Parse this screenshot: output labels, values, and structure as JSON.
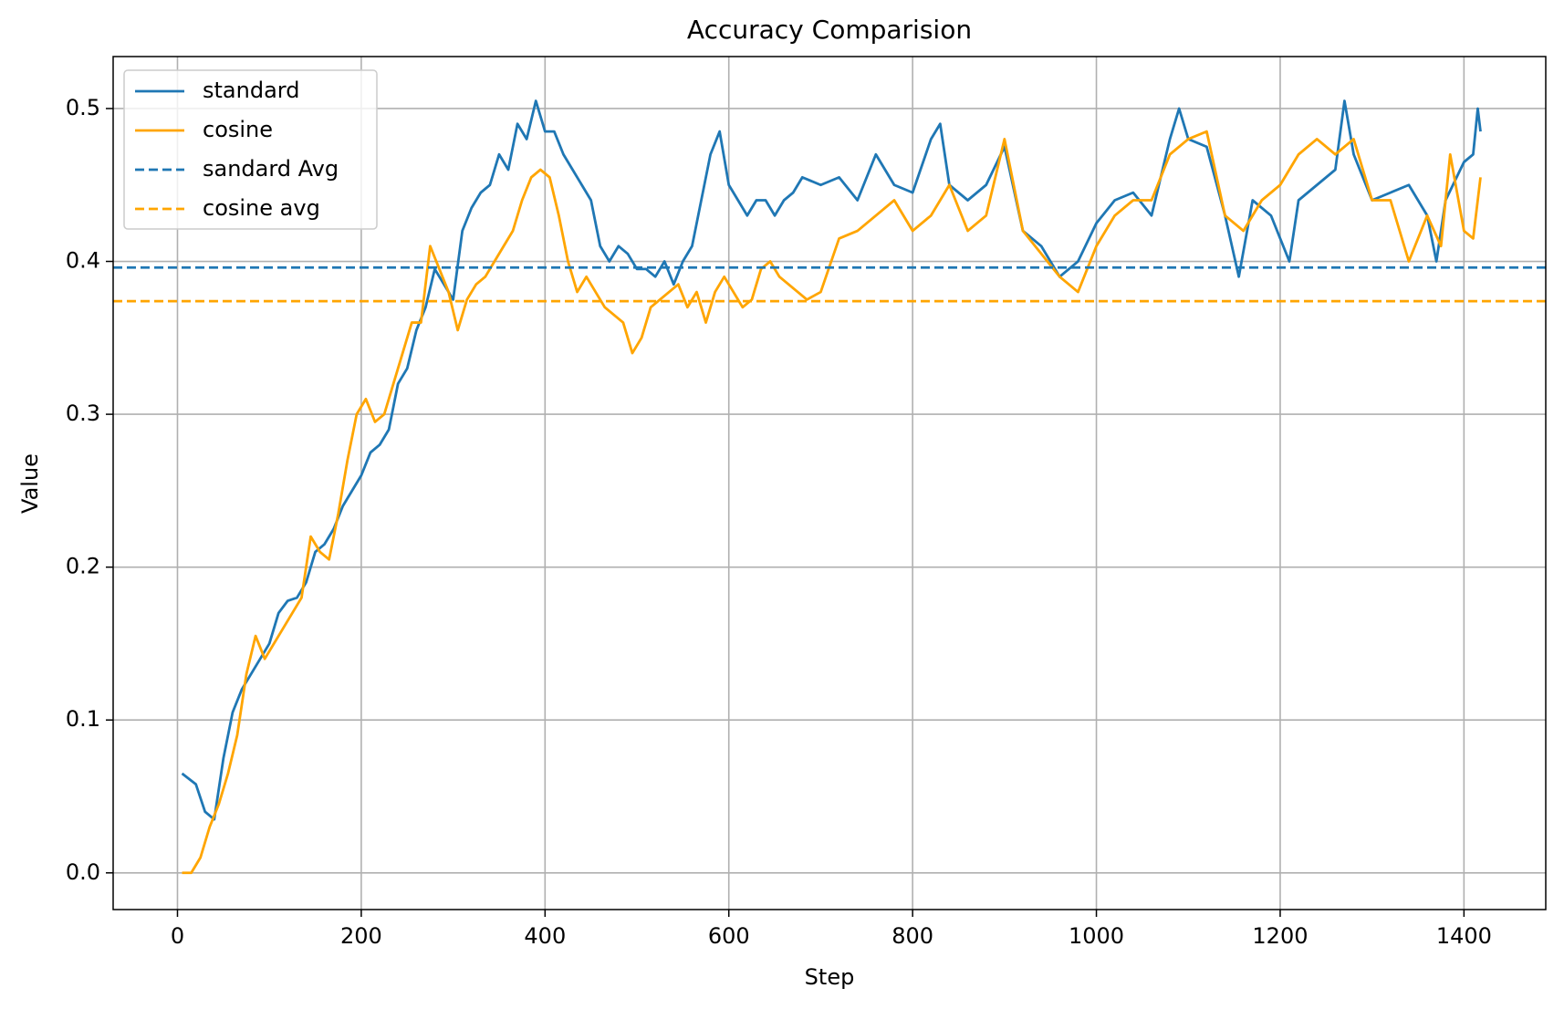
{
  "chart_data": {
    "type": "line",
    "title": "Accuracy Comparision",
    "x_label": "Step",
    "y_label": "Value",
    "xlim": [
      -70,
      1489
    ],
    "ylim": [
      -0.024,
      0.534
    ],
    "xticks": [
      0,
      200,
      400,
      600,
      800,
      1000,
      1200,
      1400
    ],
    "yticks": [
      {
        "value": 0,
        "label": "0.0"
      },
      0.1,
      0.2,
      0.3,
      0.4,
      0.5
    ],
    "grid": true,
    "legend": "upper left",
    "series": [
      {
        "name": "standard",
        "color": "#1f77b4",
        "x": [
          5,
          20,
          30,
          40,
          50,
          60,
          70,
          80,
          90,
          100,
          110,
          120,
          130,
          140,
          150,
          160,
          170,
          180,
          190,
          200,
          210,
          220,
          230,
          240,
          250,
          260,
          270,
          280,
          290,
          300,
          310,
          320,
          330,
          340,
          350,
          360,
          370,
          380,
          390,
          400,
          410,
          420,
          430,
          440,
          450,
          460,
          470,
          480,
          490,
          500,
          510,
          520,
          530,
          540,
          550,
          560,
          570,
          580,
          590,
          600,
          610,
          620,
          630,
          640,
          650,
          660,
          670,
          680,
          700,
          720,
          740,
          760,
          780,
          800,
          820,
          830,
          840,
          860,
          880,
          900,
          920,
          940,
          960,
          980,
          1000,
          1020,
          1040,
          1060,
          1080,
          1090,
          1100,
          1120,
          1140,
          1155,
          1170,
          1190,
          1210,
          1220,
          1240,
          1260,
          1270,
          1280,
          1300,
          1320,
          1340,
          1360,
          1370,
          1380,
          1400,
          1410,
          1415,
          1418
        ],
        "values": [
          0.065,
          0.058,
          0.04,
          0.035,
          0.075,
          0.105,
          0.12,
          0.13,
          0.14,
          0.15,
          0.17,
          0.178,
          0.18,
          0.19,
          0.21,
          0.215,
          0.225,
          0.24,
          0.25,
          0.26,
          0.275,
          0.28,
          0.29,
          0.32,
          0.33,
          0.355,
          0.37,
          0.395,
          0.385,
          0.375,
          0.42,
          0.435,
          0.445,
          0.45,
          0.47,
          0.46,
          0.49,
          0.48,
          0.505,
          0.485,
          0.485,
          0.47,
          0.46,
          0.45,
          0.44,
          0.41,
          0.4,
          0.41,
          0.405,
          0.395,
          0.395,
          0.39,
          0.4,
          0.385,
          0.4,
          0.41,
          0.44,
          0.47,
          0.485,
          0.45,
          0.44,
          0.43,
          0.44,
          0.44,
          0.43,
          0.44,
          0.445,
          0.455,
          0.45,
          0.455,
          0.44,
          0.47,
          0.45,
          0.445,
          0.48,
          0.49,
          0.45,
          0.44,
          0.45,
          0.475,
          0.42,
          0.41,
          0.39,
          0.4,
          0.425,
          0.44,
          0.445,
          0.43,
          0.48,
          0.5,
          0.48,
          0.475,
          0.43,
          0.39,
          0.44,
          0.43,
          0.4,
          0.44,
          0.45,
          0.46,
          0.505,
          0.47,
          0.44,
          0.445,
          0.45,
          0.43,
          0.4,
          0.44,
          0.465,
          0.47,
          0.5,
          0.485
        ]
      },
      {
        "name": "cosine",
        "color": "#ffa500",
        "x": [
          5,
          15,
          25,
          35,
          45,
          55,
          65,
          75,
          85,
          95,
          105,
          115,
          125,
          135,
          145,
          155,
          165,
          175,
          185,
          195,
          205,
          215,
          225,
          235,
          245,
          255,
          265,
          275,
          285,
          295,
          305,
          315,
          325,
          335,
          345,
          355,
          365,
          375,
          385,
          395,
          405,
          415,
          425,
          435,
          445,
          455,
          465,
          475,
          485,
          495,
          505,
          515,
          525,
          535,
          545,
          555,
          565,
          575,
          585,
          595,
          605,
          615,
          625,
          635,
          645,
          655,
          665,
          675,
          685,
          700,
          720,
          740,
          760,
          780,
          800,
          820,
          840,
          860,
          880,
          900,
          920,
          940,
          960,
          980,
          1000,
          1020,
          1040,
          1060,
          1080,
          1100,
          1120,
          1140,
          1160,
          1180,
          1200,
          1220,
          1240,
          1260,
          1280,
          1300,
          1320,
          1340,
          1360,
          1375,
          1385,
          1400,
          1410,
          1418
        ],
        "values": [
          0,
          0,
          0.01,
          0.03,
          0.045,
          0.065,
          0.09,
          0.13,
          0.155,
          0.14,
          0.15,
          0.16,
          0.17,
          0.18,
          0.22,
          0.21,
          0.205,
          0.235,
          0.27,
          0.3,
          0.31,
          0.295,
          0.3,
          0.32,
          0.34,
          0.36,
          0.36,
          0.41,
          0.395,
          0.38,
          0.355,
          0.375,
          0.385,
          0.39,
          0.4,
          0.41,
          0.42,
          0.44,
          0.455,
          0.46,
          0.455,
          0.43,
          0.4,
          0.38,
          0.39,
          0.38,
          0.37,
          0.365,
          0.36,
          0.34,
          0.35,
          0.37,
          0.375,
          0.38,
          0.385,
          0.37,
          0.38,
          0.36,
          0.38,
          0.39,
          0.38,
          0.37,
          0.375,
          0.395,
          0.4,
          0.39,
          0.385,
          0.38,
          0.375,
          0.38,
          0.415,
          0.42,
          0.43,
          0.44,
          0.42,
          0.43,
          0.45,
          0.42,
          0.43,
          0.48,
          0.42,
          0.405,
          0.39,
          0.38,
          0.41,
          0.43,
          0.44,
          0.44,
          0.47,
          0.48,
          0.485,
          0.43,
          0.42,
          0.44,
          0.45,
          0.47,
          0.48,
          0.47,
          0.48,
          0.44,
          0.44,
          0.4,
          0.43,
          0.41,
          0.47,
          0.42,
          0.415,
          0.455
        ]
      }
    ],
    "reference_lines": [
      {
        "name": "sandard Avg",
        "color": "#1f77b4",
        "value": 0.396
      },
      {
        "name": "cosine avg",
        "color": "#ffa500",
        "value": 0.374
      }
    ]
  }
}
